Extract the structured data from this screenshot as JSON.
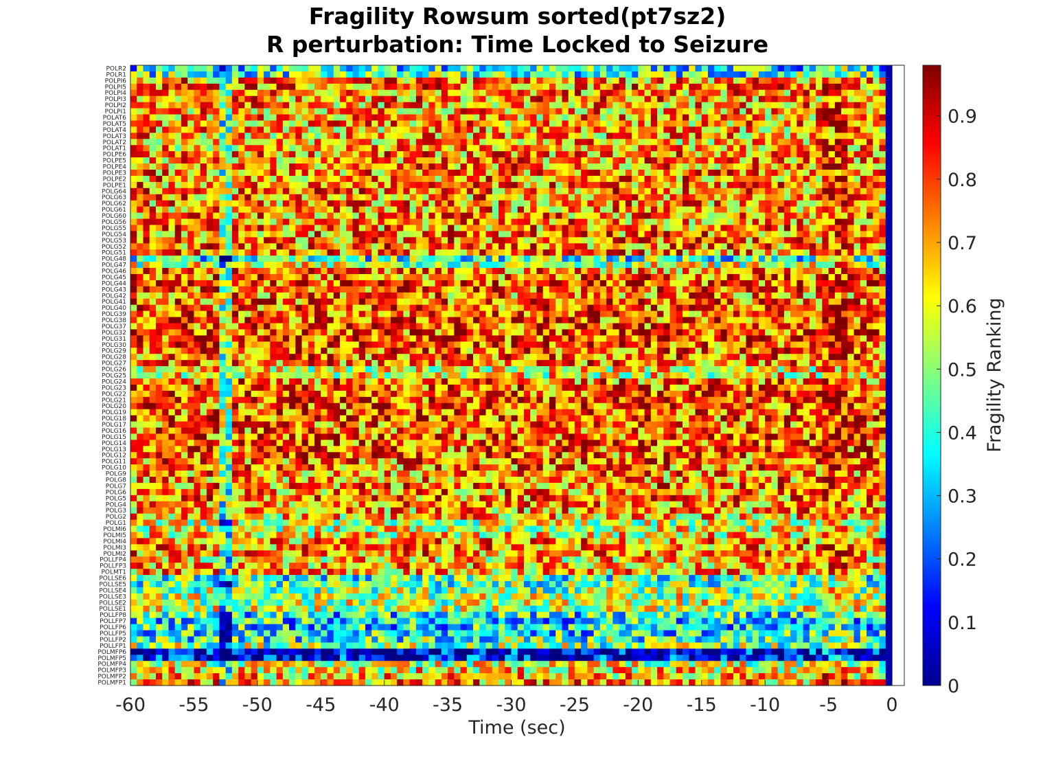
{
  "title_line1": "Fragility Rowsum sorted(pt7sz2)",
  "title_line2": "R perturbation:  Time Locked to Seizure",
  "chart_data": {
    "type": "heatmap",
    "title": "Fragility Rowsum sorted(pt7sz2)",
    "subtitle": "R perturbation:  Time Locked to Seizure",
    "xlabel": "Time (sec)",
    "ylabel": "",
    "colorbar_label": "Fragility Ranking",
    "colormap": "jet",
    "xlim": [
      -60,
      0
    ],
    "x_ticks": [
      -60,
      -55,
      -50,
      -45,
      -40,
      -35,
      -30,
      -25,
      -20,
      -15,
      -10,
      -5,
      0
    ],
    "clim": [
      0,
      0.98
    ],
    "colorbar_ticks": [
      "0",
      "0.1",
      "0.2",
      "0.3",
      "0.4",
      "0.5",
      "0.6",
      "0.7",
      "0.8",
      "0.9"
    ],
    "n_time_bins": 120,
    "rows": [
      "POLR2",
      "POLR1",
      "POLPI6",
      "POLPI5",
      "POLPI4",
      "POLPI3",
      "POLPI2",
      "POLPI1",
      "POLAT6",
      "POLAT5",
      "POLAT4",
      "POLAT3",
      "POLAT2",
      "POLAT1",
      "POLPE6",
      "POLPE5",
      "POLPE4",
      "POLPE3",
      "POLPE2",
      "POLPE1",
      "POLG64",
      "POLG63",
      "POLG62",
      "POLG61",
      "POLG60",
      "POLG56",
      "POLG55",
      "POLG54",
      "POLG53",
      "POLG52",
      "POLG51",
      "POLG48",
      "POLG47",
      "POLG46",
      "POLG45",
      "POLG44",
      "POLG43",
      "POLG42",
      "POLG41",
      "POLG40",
      "POLG39",
      "POLG38",
      "POLG37",
      "POLG32",
      "POLG31",
      "POLG30",
      "POLG29",
      "POLG28",
      "POLG27",
      "POLG26",
      "POLG25",
      "POLG24",
      "POLG23",
      "POLG22",
      "POLG21",
      "POLG20",
      "POLG19",
      "POLG18",
      "POLG17",
      "POLG16",
      "POLG15",
      "POLG14",
      "POLG13",
      "POLG12",
      "POLG11",
      "POLG10",
      "POLG9",
      "POLG8",
      "POLG7",
      "POLG6",
      "POLG5",
      "POLG4",
      "POLG3",
      "POLG2",
      "POLG1",
      "POLMI6",
      "POLMI5",
      "POLMI4",
      "POLMI3",
      "POLMI2",
      "POLLFP4",
      "POLLFP3",
      "POLMT1",
      "POLLSE6",
      "POLLSE5",
      "POLLSE4",
      "POLLSE3",
      "POLLSE2",
      "POLLSE1",
      "POLLFP8",
      "POLLFP7",
      "POLLFP6",
      "POLLFP5",
      "POLLFP2",
      "POLLFP1",
      "POLMFP6",
      "POLMFP5",
      "POLMFP4",
      "POLMFP3",
      "POLMFP2",
      "POLMFP1"
    ],
    "row_mean_fragility": [
      0.38,
      0.42,
      0.72,
      0.74,
      0.72,
      0.72,
      0.71,
      0.71,
      0.7,
      0.7,
      0.69,
      0.69,
      0.69,
      0.68,
      0.72,
      0.72,
      0.72,
      0.72,
      0.72,
      0.72,
      0.74,
      0.72,
      0.72,
      0.7,
      0.72,
      0.72,
      0.73,
      0.73,
      0.73,
      0.73,
      0.73,
      0.42,
      0.56,
      0.72,
      0.76,
      0.78,
      0.78,
      0.72,
      0.76,
      0.77,
      0.78,
      0.78,
      0.78,
      0.78,
      0.78,
      0.78,
      0.77,
      0.76,
      0.74,
      0.6,
      0.6,
      0.74,
      0.78,
      0.79,
      0.8,
      0.78,
      0.77,
      0.78,
      0.76,
      0.76,
      0.77,
      0.78,
      0.77,
      0.76,
      0.75,
      0.74,
      0.72,
      0.72,
      0.73,
      0.72,
      0.74,
      0.7,
      0.7,
      0.66,
      0.55,
      0.58,
      0.62,
      0.7,
      0.72,
      0.72,
      0.66,
      0.68,
      0.68,
      0.44,
      0.46,
      0.5,
      0.55,
      0.55,
      0.55,
      0.38,
      0.36,
      0.36,
      0.38,
      0.42,
      0.5,
      0.1,
      0.1,
      0.56,
      0.62,
      0.66,
      0.7
    ],
    "column_note": "time bin at 0 sec is ~0.04 for all channels; dips near -53 sec and -7 sec"
  }
}
